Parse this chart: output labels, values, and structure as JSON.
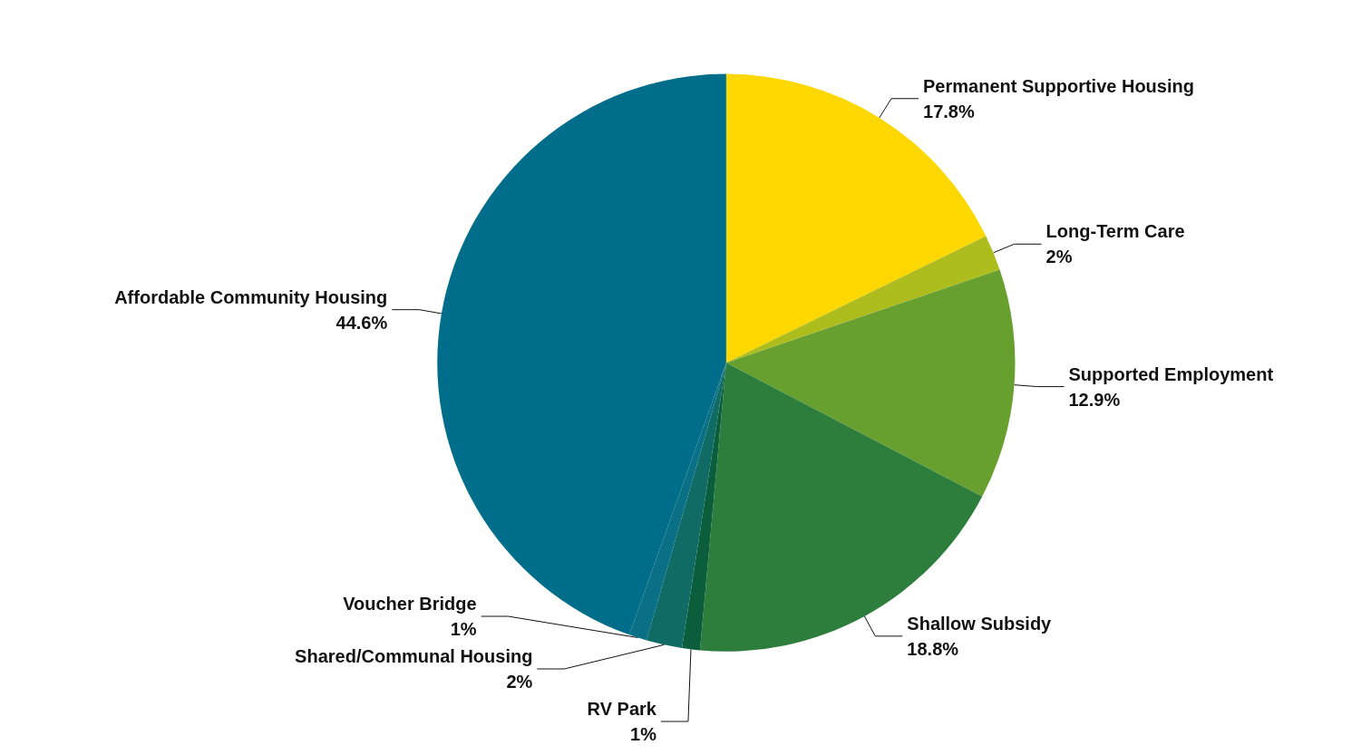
{
  "chart_data": {
    "type": "pie",
    "categories": [
      "Permanent Supportive Housing",
      "Long-Term Care",
      "Supported Employment",
      "Shallow Subsidy",
      "RV Park",
      "Shared/Communal Housing",
      "Voucher Bridge",
      "Affordable Community Housing"
    ],
    "values": [
      17.8,
      2,
      12.9,
      18.8,
      1,
      2,
      1,
      44.6
    ],
    "colors": [
      "#fcd700",
      "#aebd1e",
      "#67a02e",
      "#2d7d3c",
      "#0b5e3c",
      "#0f6b63",
      "#0a7086",
      "#006e8a"
    ],
    "value_labels": [
      "17.8%",
      "2%",
      "12.9%",
      "18.8%",
      "1%",
      "2%",
      "1%",
      "44.6%"
    ]
  }
}
